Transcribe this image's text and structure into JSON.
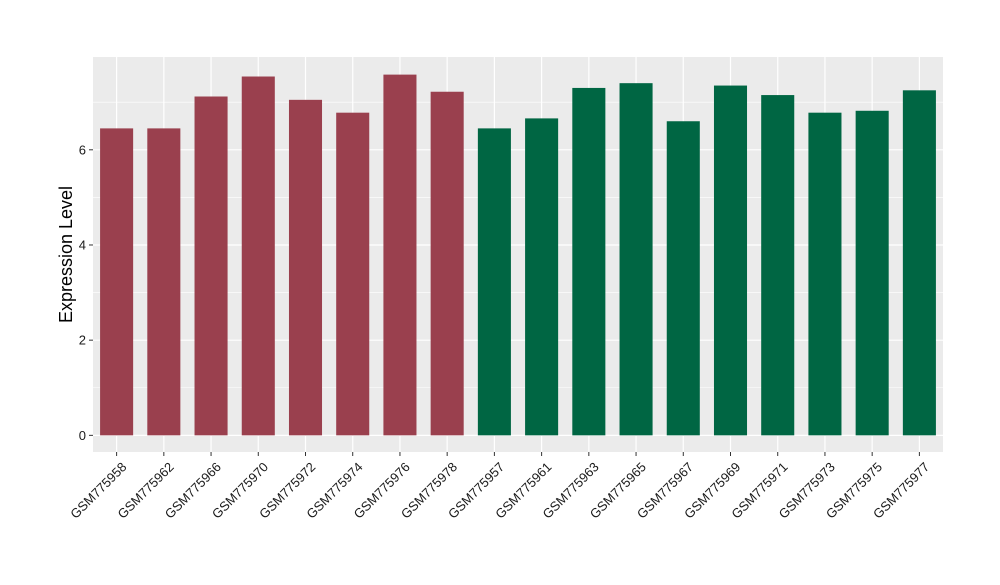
{
  "chart_data": {
    "type": "bar",
    "title": "",
    "xlabel": "",
    "ylabel": "Expression Level",
    "categories": [
      "GSM775958",
      "GSM775962",
      "GSM775966",
      "GSM775970",
      "GSM775972",
      "GSM775974",
      "GSM775976",
      "GSM775978",
      "GSM775957",
      "GSM775961",
      "GSM775963",
      "GSM775965",
      "GSM775967",
      "GSM775969",
      "GSM775971",
      "GSM775973",
      "GSM775975",
      "GSM775977"
    ],
    "values": [
      6.45,
      6.45,
      7.12,
      7.54,
      7.05,
      6.78,
      7.58,
      7.22,
      6.45,
      6.66,
      7.3,
      7.4,
      6.6,
      7.35,
      7.15,
      6.78,
      6.82,
      7.25
    ],
    "groups": [
      0,
      0,
      0,
      0,
      0,
      0,
      0,
      0,
      1,
      1,
      1,
      1,
      1,
      1,
      1,
      1,
      1,
      1
    ],
    "group_colors": [
      "#9A404E",
      "#006643"
    ],
    "yticks": [
      0,
      2,
      4,
      6
    ],
    "ytick_labels": [
      "0",
      "2",
      "4",
      "6"
    ],
    "ylim": [
      -0.35,
      7.95
    ],
    "grid": true,
    "legend": "none",
    "panel_background": "#EBEBEB",
    "grid_color": "#FFFFFF"
  }
}
